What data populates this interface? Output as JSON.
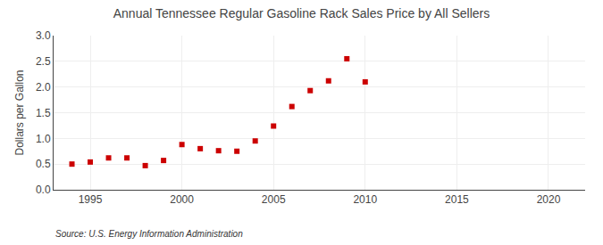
{
  "chart_data": {
    "type": "scatter",
    "title": "Annual Tennessee Regular Gasoline Rack Sales Price by All Sellers",
    "ylabel": "Dollars per Gallon",
    "annotations": [
      "Source: U.S. Energy Information Administration"
    ],
    "x": [
      1994,
      1995,
      1996,
      1997,
      1998,
      1999,
      2000,
      2001,
      2002,
      2003,
      2004,
      2005,
      2006,
      2007,
      2008,
      2009,
      2010
    ],
    "values": [
      0.5,
      0.54,
      0.62,
      0.62,
      0.47,
      0.57,
      0.88,
      0.8,
      0.76,
      0.75,
      0.95,
      1.24,
      1.62,
      1.93,
      2.12,
      2.55,
      2.1
    ],
    "color": "#cc0000",
    "marker": "square",
    "xlim": [
      1993,
      2022
    ],
    "ylim": [
      0.0,
      3.0
    ],
    "xticks": [
      1995,
      2000,
      2005,
      2010,
      2015,
      2020
    ],
    "yticks": [
      {
        "value": 0,
        "label": "0.0"
      },
      0.5,
      {
        "value": 1,
        "label": "1.0"
      },
      1.5,
      {
        "value": 2,
        "label": "2.0"
      },
      2.5,
      {
        "value": 3,
        "label": "3.0"
      }
    ],
    "grid": true
  }
}
